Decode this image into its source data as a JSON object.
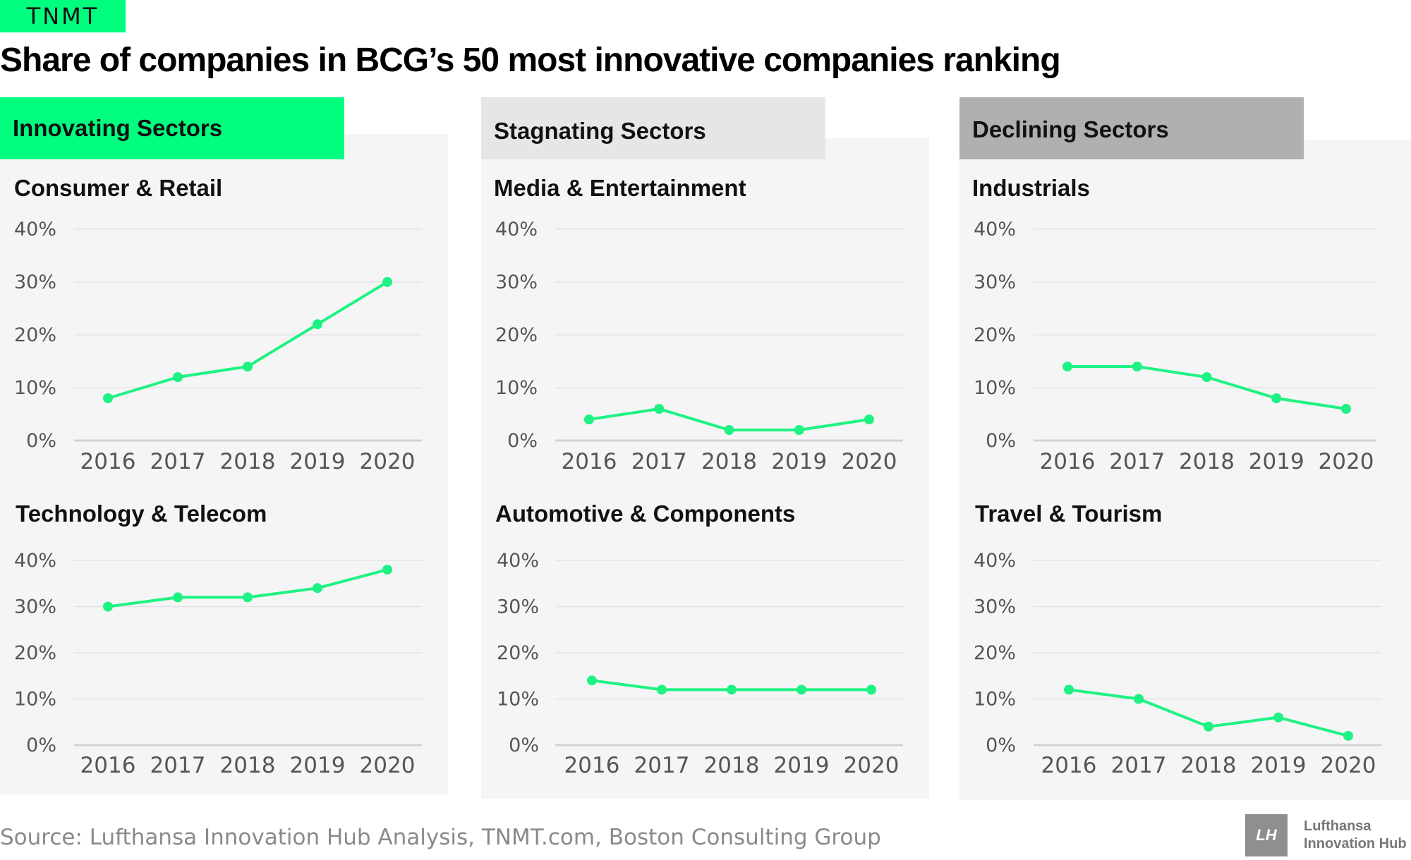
{
  "brand": "TNMT",
  "title": "Share of companies in BCG’s 50 most innovative companies ranking",
  "colors": {
    "accent": "#00ff7f",
    "line": "#1ef283",
    "stagnating_tab": "#e6e6e6",
    "declining_tab": "#b0b0b0"
  },
  "groups": [
    {
      "label": "Innovating Sectors"
    },
    {
      "label": "Stagnating Sectors"
    },
    {
      "label": "Declining Sectors"
    }
  ],
  "chart_data": [
    {
      "type": "line",
      "title": "Consumer & Retail",
      "group": "Innovating Sectors",
      "x": [
        2016,
        2017,
        2018,
        2019,
        2020
      ],
      "y": [
        8,
        12,
        14,
        22,
        30
      ],
      "ylim": [
        0,
        40
      ],
      "yticks": [
        "0%",
        "10%",
        "20%",
        "30%",
        "40%"
      ],
      "grid": true
    },
    {
      "type": "line",
      "title": "Technology & Telecom",
      "group": "Innovating Sectors",
      "x": [
        2016,
        2017,
        2018,
        2019,
        2020
      ],
      "y": [
        30,
        32,
        32,
        34,
        38
      ],
      "ylim": [
        0,
        40
      ],
      "yticks": [
        "0%",
        "10%",
        "20%",
        "30%",
        "40%"
      ],
      "grid": true
    },
    {
      "type": "line",
      "title": "Media & Entertainment",
      "group": "Stagnating Sectors",
      "x": [
        2016,
        2017,
        2018,
        2019,
        2020
      ],
      "y": [
        4,
        6,
        2,
        2,
        4
      ],
      "ylim": [
        0,
        40
      ],
      "yticks": [
        "0%",
        "10%",
        "20%",
        "30%",
        "40%"
      ],
      "grid": true
    },
    {
      "type": "line",
      "title": "Automotive & Components",
      "group": "Stagnating Sectors",
      "x": [
        2016,
        2017,
        2018,
        2019,
        2020
      ],
      "y": [
        14,
        12,
        12,
        12,
        12
      ],
      "ylim": [
        0,
        40
      ],
      "yticks": [
        "0%",
        "10%",
        "20%",
        "30%",
        "40%"
      ],
      "grid": true
    },
    {
      "type": "line",
      "title": "Industrials",
      "group": "Declining Sectors",
      "x": [
        2016,
        2017,
        2018,
        2019,
        2020
      ],
      "y": [
        14,
        14,
        12,
        8,
        6
      ],
      "ylim": [
        0,
        40
      ],
      "yticks": [
        "0%",
        "10%",
        "20%",
        "30%",
        "40%"
      ],
      "grid": true
    },
    {
      "type": "line",
      "title": "Travel & Tourism",
      "group": "Declining Sectors",
      "x": [
        2016,
        2017,
        2018,
        2019,
        2020
      ],
      "y": [
        12,
        10,
        4,
        6,
        2
      ],
      "ylim": [
        0,
        40
      ],
      "yticks": [
        "0%",
        "10%",
        "20%",
        "30%",
        "40%"
      ],
      "grid": true
    }
  ],
  "source": "Source: Lufthansa Innovation Hub Analysis, TNMT.com, Boston Consulting Group",
  "logo": {
    "mark": "LH",
    "line1": "Lufthansa",
    "line2": "Innovation Hub"
  }
}
